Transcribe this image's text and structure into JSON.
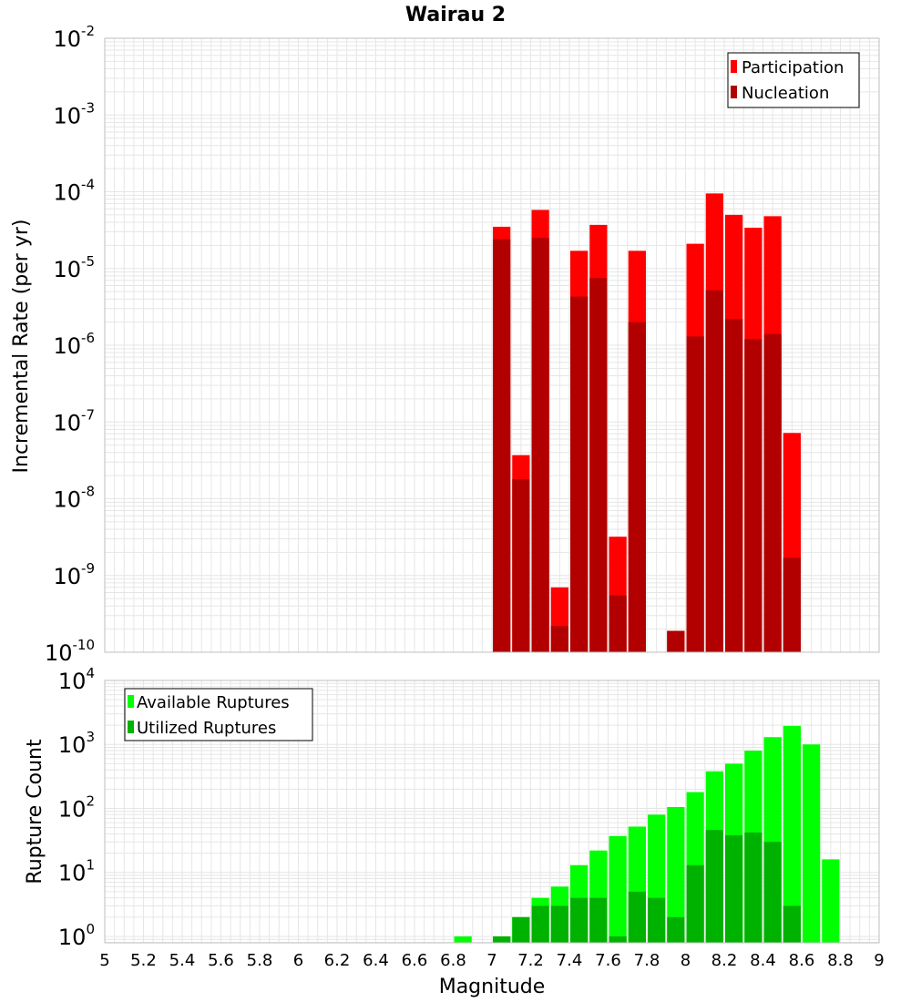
{
  "chart_data": [
    {
      "type": "bar",
      "title": "Wairau 2",
      "xlabel": "",
      "ylabel": "Incremental Rate (per yr)",
      "yscale": "log",
      "ylim_exp": [
        -10,
        -2
      ],
      "xlim": [
        5,
        9
      ],
      "x": [
        7.05,
        7.15,
        7.25,
        7.35,
        7.45,
        7.55,
        7.65,
        7.75,
        7.85,
        7.95,
        8.05,
        8.15,
        8.25,
        8.35,
        8.45,
        8.55
      ],
      "legend_position": "top-right",
      "series": [
        {
          "name": "Participation",
          "color": "#ff0000",
          "values": [
            3.5e-05,
            3.7e-08,
            5.8e-05,
            7e-10,
            1.7e-05,
            3.7e-05,
            3.2e-09,
            1.7e-05,
            null,
            1.9e-10,
            2.1e-05,
            9.5e-05,
            5e-05,
            3.4e-05,
            4.8e-05,
            7.2e-08
          ]
        },
        {
          "name": "Nucleation",
          "color": "#b20000",
          "values": [
            2.4e-05,
            1.8e-08,
            2.5e-05,
            2.2e-10,
            4.3e-06,
            7.5e-06,
            5.5e-10,
            2e-06,
            null,
            1.9e-10,
            1.3e-06,
            5.2e-06,
            2.2e-06,
            1.2e-06,
            1.4e-06,
            1.7e-09
          ]
        }
      ]
    },
    {
      "type": "bar",
      "title": "",
      "xlabel": "Magnitude",
      "ylabel": "Rupture Count",
      "yscale": "log",
      "ylim_exp": [
        -0.1,
        4
      ],
      "xlim": [
        5,
        9
      ],
      "x": [
        6.85,
        6.95,
        7.05,
        7.15,
        7.25,
        7.35,
        7.45,
        7.55,
        7.65,
        7.75,
        7.85,
        7.95,
        8.05,
        8.15,
        8.25,
        8.35,
        8.45,
        8.55,
        8.65,
        8.75
      ],
      "legend_position": "top-left",
      "series": [
        {
          "name": "Available Ruptures",
          "color": "#00ff00",
          "values": [
            1,
            null,
            1,
            2,
            4,
            6,
            13,
            22,
            37,
            52,
            80,
            105,
            180,
            380,
            500,
            800,
            1300,
            1950,
            1000,
            16
          ]
        },
        {
          "name": "Utilized Ruptures",
          "color": "#00b200",
          "values": [
            null,
            null,
            1,
            2,
            3,
            3,
            4,
            4,
            1,
            5,
            4,
            2,
            13,
            46,
            38,
            42,
            30,
            3,
            null,
            null
          ]
        }
      ]
    }
  ],
  "x_ticks": [
    "5",
    "5.2",
    "5.4",
    "5.6",
    "5.8",
    "6",
    "6.2",
    "6.4",
    "6.6",
    "6.8",
    "7",
    "7.2",
    "7.4",
    "7.6",
    "7.8",
    "8",
    "8.2",
    "8.4",
    "8.6",
    "8.8",
    "9"
  ],
  "top_y_ticks": [
    {
      "base": "10",
      "exp": "-2"
    },
    {
      "base": "10",
      "exp": "-3"
    },
    {
      "base": "10",
      "exp": "-4"
    },
    {
      "base": "10",
      "exp": "-5"
    },
    {
      "base": "10",
      "exp": "-6"
    },
    {
      "base": "10",
      "exp": "-7"
    },
    {
      "base": "10",
      "exp": "-8"
    },
    {
      "base": "10",
      "exp": "-9"
    },
    {
      "base": "10",
      "exp": "-10"
    }
  ],
  "bottom_y_ticks": [
    {
      "base": "10",
      "exp": "4"
    },
    {
      "base": "10",
      "exp": "3"
    },
    {
      "base": "10",
      "exp": "2"
    },
    {
      "base": "10",
      "exp": "1"
    },
    {
      "base": "10",
      "exp": "0"
    }
  ],
  "colors": {
    "grid": "#e6e6e6",
    "frame": "#bfbfbf"
  }
}
